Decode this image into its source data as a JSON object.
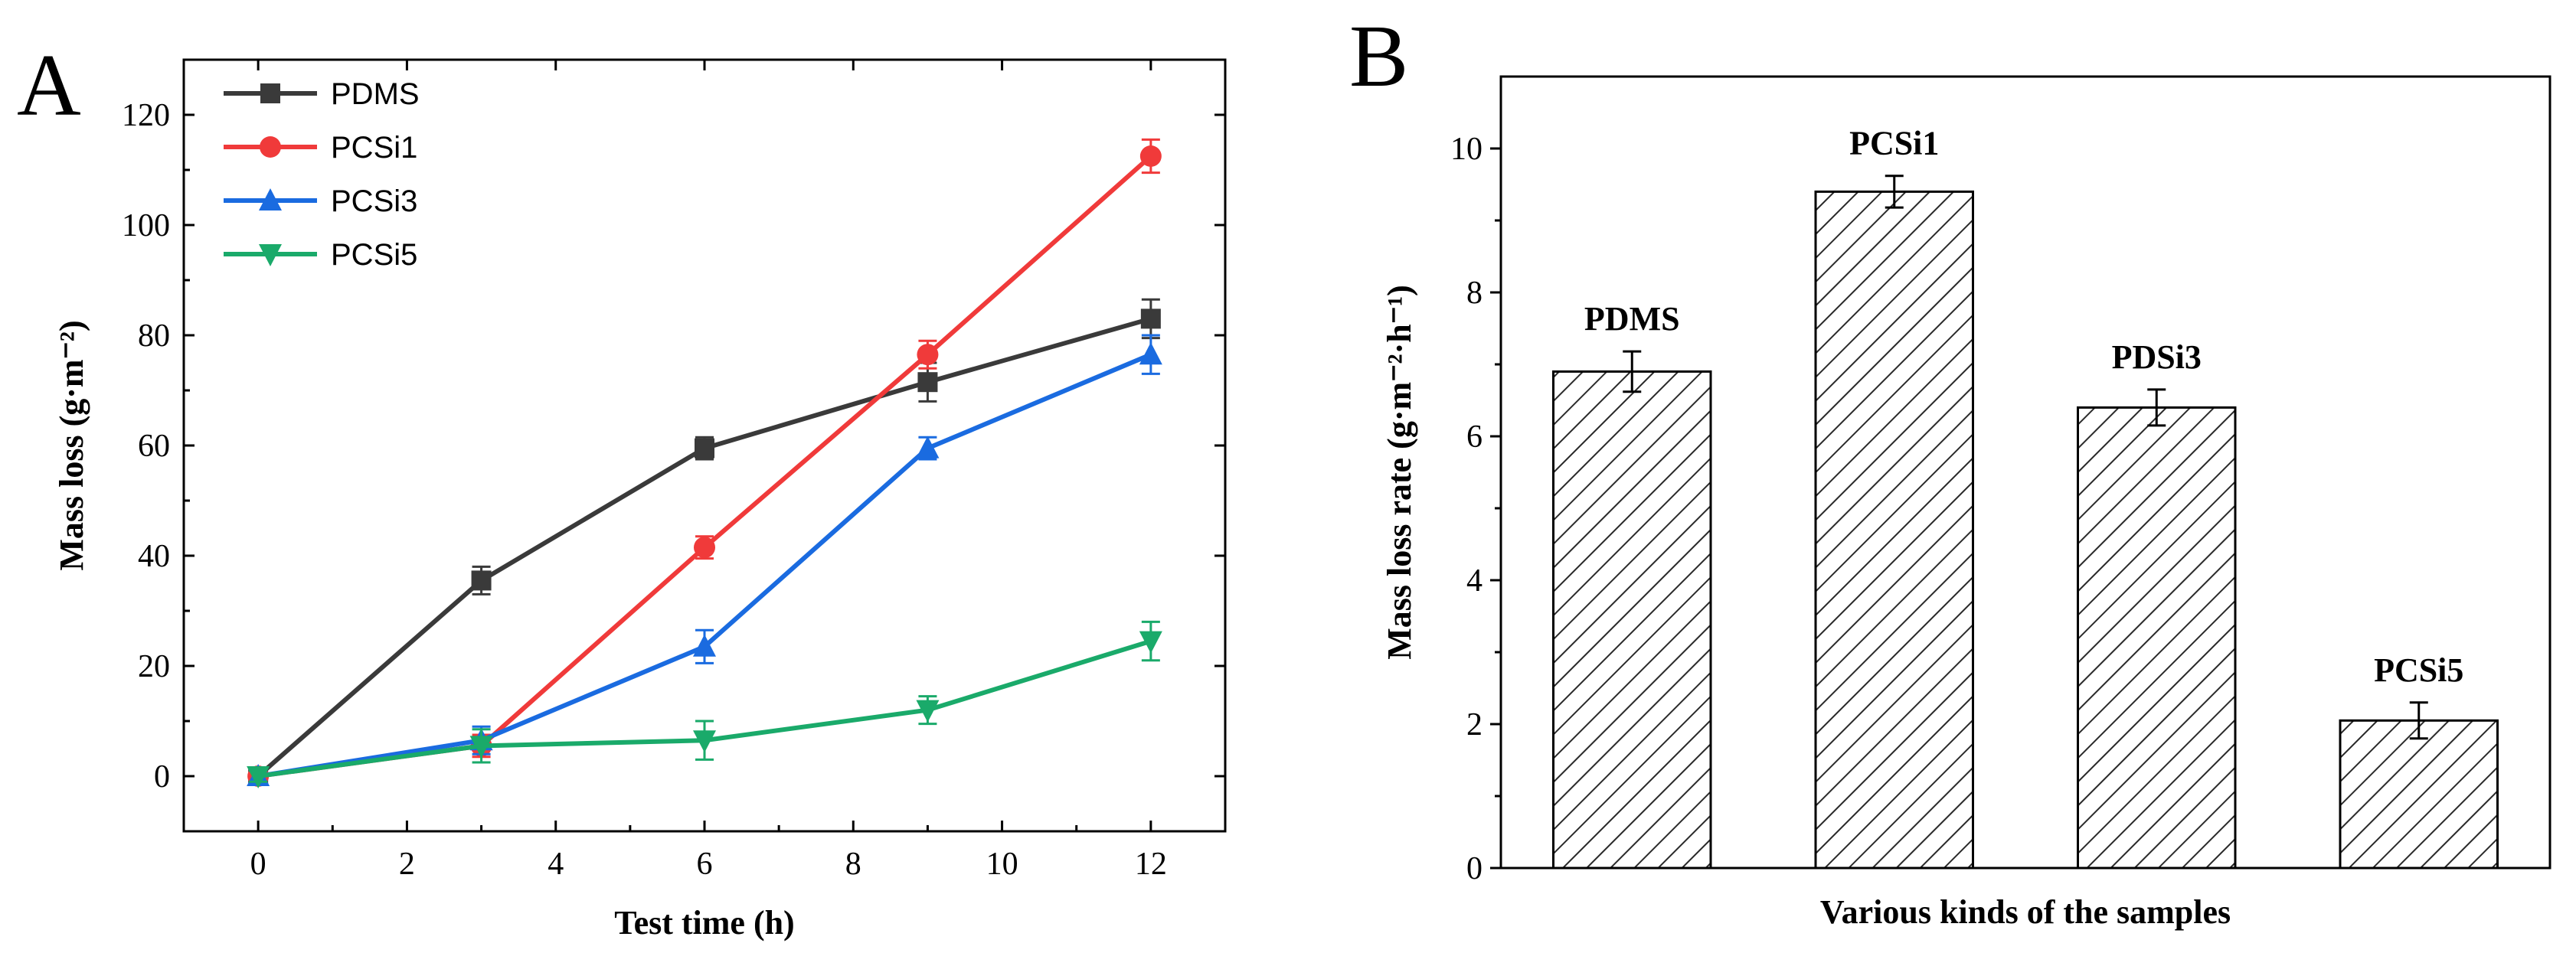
{
  "chart_data": [
    {
      "type": "line",
      "panel": "A",
      "title": "",
      "xlabel": "Test time (h)",
      "ylabel": "Mass loss (g·m⁻²)",
      "xlim": [
        -1,
        13
      ],
      "ylim": [
        -10,
        130
      ],
      "xticks": [
        0,
        2,
        4,
        6,
        8,
        10,
        12
      ],
      "yticks": [
        0,
        20,
        40,
        60,
        80,
        100,
        120
      ],
      "x": [
        0,
        3,
        6,
        9,
        12
      ],
      "legend_position": "top-left",
      "series": [
        {
          "name": "PDMS",
          "color": "#3a3a3a",
          "marker": "square",
          "values": [
            0,
            35.5,
            59.5,
            71.5,
            83
          ],
          "errors": [
            1,
            2.5,
            2.0,
            3.5,
            3.5
          ]
        },
        {
          "name": "PCSi1",
          "color": "#f03a3a",
          "marker": "circle",
          "values": [
            0,
            5.5,
            41.5,
            76.5,
            112.5
          ],
          "errors": [
            1,
            2.0,
            2.0,
            2.5,
            3.0
          ]
        },
        {
          "name": "PCSi3",
          "color": "#1a6be0",
          "marker": "triangle-up",
          "values": [
            0,
            6.5,
            23.5,
            59.5,
            76.5
          ],
          "errors": [
            1,
            2.5,
            3.0,
            2.0,
            3.5
          ]
        },
        {
          "name": "PCSi5",
          "color": "#1aaa6a",
          "marker": "triangle-down",
          "values": [
            0,
            5.5,
            6.5,
            12,
            24.5
          ],
          "errors": [
            1,
            3.0,
            3.5,
            2.5,
            3.5
          ]
        }
      ]
    },
    {
      "type": "bar",
      "panel": "B",
      "title": "",
      "xlabel": "Various kinds of the samples",
      "ylabel": "Mass loss rate (g·m⁻²·h⁻¹)",
      "ylim": [
        0,
        11
      ],
      "yticks": [
        0,
        2,
        4,
        6,
        8,
        10
      ],
      "fill": "hatched",
      "categories": [
        "PDMS",
        "PCSi1",
        "PDSi3",
        "PCSi5"
      ],
      "values": [
        6.9,
        9.4,
        6.4,
        2.05
      ],
      "errors": [
        0.28,
        0.22,
        0.25,
        0.25
      ]
    }
  ]
}
